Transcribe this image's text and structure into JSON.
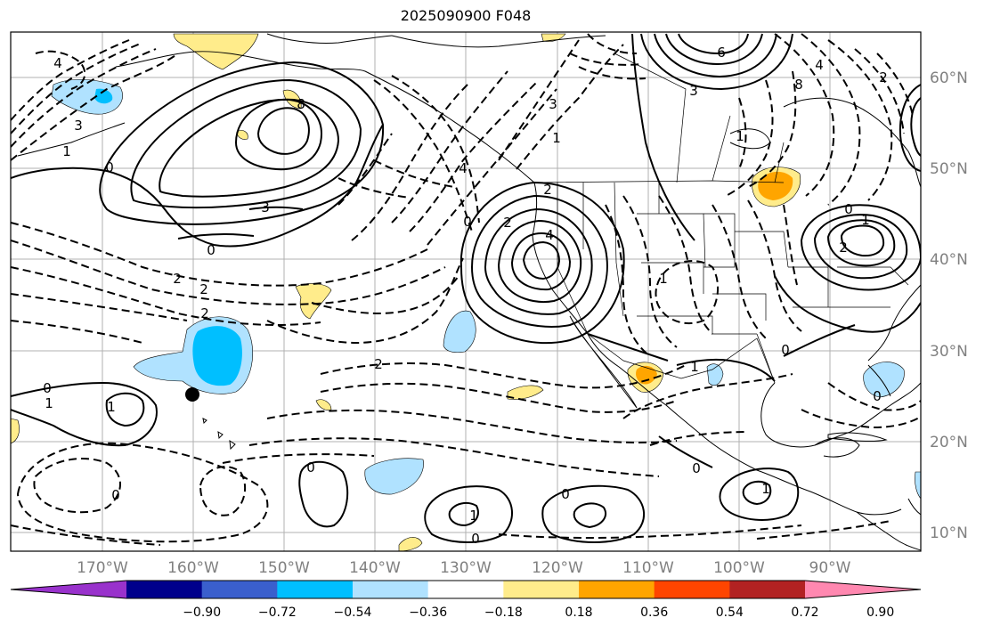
{
  "title": "2025090900 F048",
  "lat_labels": [
    "60°N",
    "50°N",
    "40°N",
    "30°N",
    "20°N",
    "10°N"
  ],
  "lon_labels": [
    "170°W",
    "160°W",
    "150°W",
    "140°W",
    "130°W",
    "120°W",
    "110°W",
    "100°W",
    "90°W"
  ],
  "colorbar": {
    "colors": [
      "#9932cc",
      "#00008b",
      "#3a5fcd",
      "#00bfff",
      "#b0e2ff",
      "#ffffff",
      "#ffec8b",
      "#ffa500",
      "#ff4500",
      "#b22222",
      "#ff88b0"
    ],
    "tick_labels": [
      "−0.90",
      "−0.72",
      "−0.54",
      "−0.36",
      "−0.18",
      "0.18",
      "0.36",
      "0.54",
      "0.72",
      "0.90"
    ]
  },
  "contour_labels": [
    "4",
    "3",
    "0",
    "1",
    "8",
    "3",
    "0",
    "2",
    "2",
    "2",
    "0",
    "1",
    "2",
    "4",
    "0",
    "2",
    "2",
    "1",
    "4",
    "3",
    "6",
    "3",
    "8",
    "1",
    "4",
    "2",
    "0",
    "1",
    "2",
    "0",
    "0",
    "1",
    "1",
    "1",
    "0",
    "0",
    "0",
    "1",
    "0",
    "0",
    "1"
  ],
  "marker": "station-dot"
}
